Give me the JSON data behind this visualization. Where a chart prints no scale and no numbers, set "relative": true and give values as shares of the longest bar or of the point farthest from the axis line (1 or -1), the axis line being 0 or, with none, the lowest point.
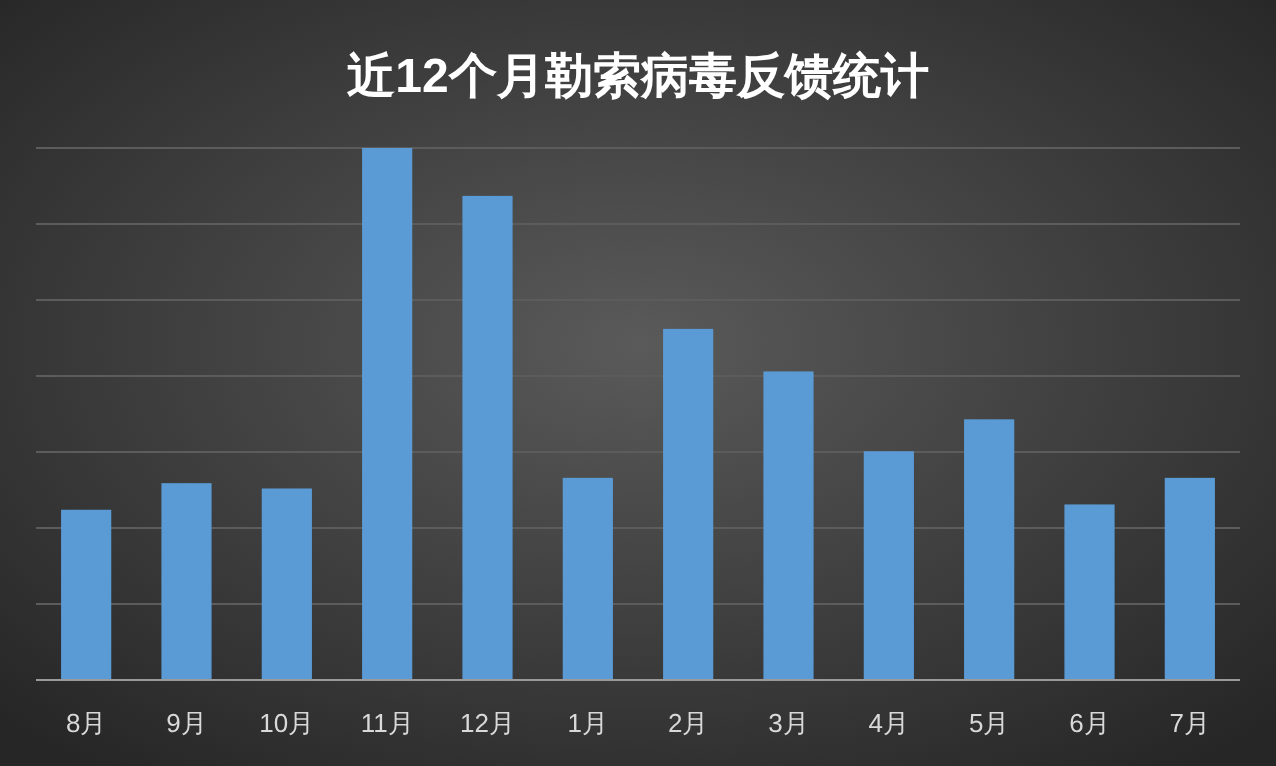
{
  "chart_data": {
    "type": "bar",
    "title": "近12个月勒索病毒反馈统计",
    "categories": [
      "8月",
      "9月",
      "10月",
      "11月",
      "12月",
      "1月",
      "2月",
      "3月",
      "4月",
      "5月",
      "6月",
      "7月"
    ],
    "values": [
      0.32,
      0.37,
      0.36,
      1,
      0.91,
      0.38,
      0.66,
      0.58,
      0.43,
      0.49,
      0.33,
      0.38
    ],
    "color": "#5b9bd5",
    "relative": true,
    "grid": "y"
  }
}
